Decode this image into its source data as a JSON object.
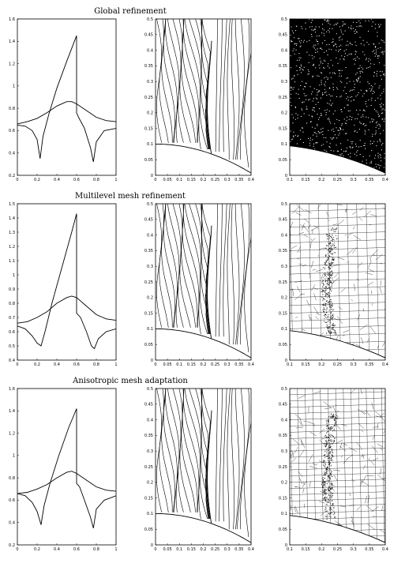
{
  "rows": [
    {
      "title": "Global refinement",
      "mesh_kind": "dense"
    },
    {
      "title": "Multilevel mesh refinement",
      "mesh_kind": "multilevel"
    },
    {
      "title": "Anisotropic mesh adaptation",
      "mesh_kind": "anisotropic"
    }
  ],
  "chart_data": [
    {
      "type": "line",
      "panel": "profile",
      "row": 0,
      "xlim": [
        0,
        1
      ],
      "ylim": [
        0.2,
        1.6
      ],
      "xticks": [
        "0",
        "0.2",
        "0.4",
        "0.6",
        "0.8",
        "1"
      ],
      "yticks": [
        "0.2",
        "0.4",
        "0.6",
        "0.8",
        "1",
        "1.2",
        "1.4",
        "1.6"
      ],
      "series": [
        {
          "x": [
            0,
            0.08,
            0.15,
            0.2,
            0.23,
            0.26,
            0.32,
            0.4,
            0.5,
            0.6,
            0.6,
            0.62,
            0.68,
            0.74,
            0.77,
            0.8,
            0.88,
            1
          ],
          "y": [
            0.65,
            0.64,
            0.6,
            0.52,
            0.35,
            0.55,
            0.75,
            0.98,
            1.22,
            1.45,
            0.76,
            0.72,
            0.62,
            0.45,
            0.32,
            0.5,
            0.6,
            0.62
          ]
        },
        {
          "x": [
            0,
            0.1,
            0.2,
            0.3,
            0.4,
            0.5,
            0.55,
            0.6,
            0.7,
            0.8,
            0.9,
            1
          ],
          "y": [
            0.66,
            0.68,
            0.71,
            0.76,
            0.82,
            0.86,
            0.86,
            0.84,
            0.78,
            0.72,
            0.69,
            0.68
          ]
        }
      ]
    },
    {
      "type": "line",
      "panel": "contours",
      "row": 0,
      "xlim": [
        0,
        0.4
      ],
      "ylim": [
        0,
        0.5
      ],
      "xticks": [
        "0",
        "0.05",
        "0.1",
        "0.15",
        "0.2",
        "0.25",
        "0.3",
        "0.35",
        "0.4"
      ],
      "yticks": [
        "0",
        "0.05",
        "0.1",
        "0.15",
        "0.2",
        "0.25",
        "0.3",
        "0.35",
        "0.4",
        "0.45",
        "0.5"
      ]
    },
    {
      "type": "scatter",
      "panel": "mesh",
      "row": 0,
      "xlim": [
        0.1,
        0.4
      ],
      "ylim": [
        0,
        0.5
      ],
      "xticks": [
        "0.1",
        "0.15",
        "0.2",
        "0.25",
        "0.3",
        "0.35",
        "0.4"
      ],
      "yticks": [
        "0",
        "0.05",
        "0.1",
        "0.15",
        "0.2",
        "0.25",
        "0.3",
        "0.35",
        "0.4",
        "0.45",
        "0.5"
      ]
    },
    {
      "type": "line",
      "panel": "profile",
      "row": 1,
      "xlim": [
        0,
        1
      ],
      "ylim": [
        0.4,
        1.5
      ],
      "xticks": [
        "0",
        "0.2",
        "0.4",
        "0.6",
        "0.8",
        "1"
      ],
      "yticks": [
        "0.4",
        "0.5",
        "0.6",
        "0.7",
        "0.8",
        "0.9",
        "1",
        "1.1",
        "1.2",
        "1.3",
        "1.4",
        "1.5"
      ],
      "series": [
        {
          "x": [
            0,
            0.08,
            0.15,
            0.2,
            0.24,
            0.28,
            0.35,
            0.45,
            0.55,
            0.6,
            0.6,
            0.64,
            0.7,
            0.75,
            0.78,
            0.82,
            0.9,
            1
          ],
          "y": [
            0.64,
            0.62,
            0.57,
            0.52,
            0.5,
            0.6,
            0.8,
            1.05,
            1.3,
            1.43,
            0.73,
            0.7,
            0.6,
            0.5,
            0.48,
            0.55,
            0.6,
            0.62
          ]
        },
        {
          "x": [
            0,
            0.1,
            0.2,
            0.3,
            0.4,
            0.5,
            0.55,
            0.6,
            0.7,
            0.8,
            0.9,
            1
          ],
          "y": [
            0.66,
            0.67,
            0.7,
            0.74,
            0.8,
            0.84,
            0.85,
            0.84,
            0.78,
            0.72,
            0.69,
            0.68
          ]
        }
      ]
    },
    {
      "type": "line",
      "panel": "contours",
      "row": 1,
      "xlim": [
        0,
        0.4
      ],
      "ylim": [
        0,
        0.5
      ],
      "xticks": [
        "0",
        "0.05",
        "0.1",
        "0.15",
        "0.2",
        "0.25",
        "0.3",
        "0.35",
        "0.4"
      ],
      "yticks": [
        "0",
        "0.05",
        "0.1",
        "0.15",
        "0.2",
        "0.25",
        "0.3",
        "0.35",
        "0.4",
        "0.45",
        "0.5"
      ]
    },
    {
      "type": "scatter",
      "panel": "mesh",
      "row": 1,
      "xlim": [
        0.1,
        0.4
      ],
      "ylim": [
        0,
        0.5
      ],
      "xticks": [
        "0.1",
        "0.15",
        "0.2",
        "0.25",
        "0.3",
        "0.35",
        "0.4"
      ],
      "yticks": [
        "0",
        "0.05",
        "0.1",
        "0.15",
        "0.2",
        "0.25",
        "0.3",
        "0.35",
        "0.4",
        "0.45",
        "0.5"
      ]
    },
    {
      "type": "line",
      "panel": "profile",
      "row": 2,
      "xlim": [
        0,
        1
      ],
      "ylim": [
        0.2,
        1.6
      ],
      "xticks": [
        "0",
        "0.2",
        "0.4",
        "0.6",
        "0.8",
        "1"
      ],
      "yticks": [
        "0.2",
        "0.4",
        "0.6",
        "0.8",
        "1",
        "1.2",
        "1.4",
        "1.6"
      ],
      "series": [
        {
          "x": [
            0,
            0.08,
            0.15,
            0.2,
            0.24,
            0.27,
            0.33,
            0.42,
            0.52,
            0.6,
            0.6,
            0.63,
            0.68,
            0.74,
            0.77,
            0.8,
            0.88,
            1
          ],
          "y": [
            0.66,
            0.64,
            0.58,
            0.5,
            0.38,
            0.55,
            0.75,
            1.0,
            1.25,
            1.42,
            0.75,
            0.72,
            0.6,
            0.45,
            0.35,
            0.52,
            0.6,
            0.64
          ]
        },
        {
          "x": [
            0,
            0.1,
            0.2,
            0.3,
            0.4,
            0.5,
            0.55,
            0.6,
            0.7,
            0.8,
            0.9,
            1
          ],
          "y": [
            0.66,
            0.67,
            0.7,
            0.74,
            0.8,
            0.85,
            0.86,
            0.84,
            0.78,
            0.72,
            0.69,
            0.68
          ]
        }
      ]
    },
    {
      "type": "line",
      "panel": "contours",
      "row": 2,
      "xlim": [
        0,
        0.4
      ],
      "ylim": [
        0,
        0.5
      ],
      "xticks": [
        "0",
        "0.05",
        "0.1",
        "0.15",
        "0.2",
        "0.25",
        "0.3",
        "0.35",
        "0.4"
      ],
      "yticks": [
        "0",
        "0.05",
        "0.1",
        "0.15",
        "0.2",
        "0.25",
        "0.3",
        "0.35",
        "0.4",
        "0.45",
        "0.5"
      ]
    },
    {
      "type": "scatter",
      "panel": "mesh",
      "row": 2,
      "xlim": [
        0.1,
        0.4
      ],
      "ylim": [
        0,
        0.5
      ],
      "xticks": [
        "0.1",
        "0.15",
        "0.2",
        "0.25",
        "0.3",
        "0.35",
        "0.4"
      ],
      "yticks": [
        "0",
        "0.05",
        "0.1",
        "0.15",
        "0.2",
        "0.25",
        "0.3",
        "0.35",
        "0.4",
        "0.45",
        "0.5"
      ]
    }
  ]
}
